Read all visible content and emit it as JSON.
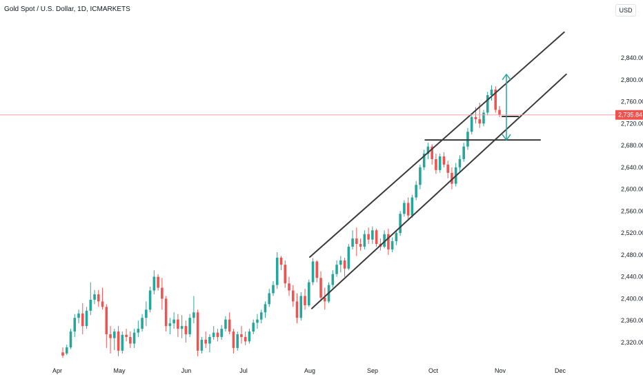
{
  "header": {
    "title": "Gold Spot / U.S. Dollar, 1D, ICMARKETS",
    "currency": "USD"
  },
  "colors": {
    "up": "#26a69a",
    "down": "#ef5350",
    "drawing": "#3a3a3a",
    "arrow": "#26a69a",
    "price_line": "#f3a3a8"
  },
  "chart_data": {
    "type": "candlestick",
    "title": "Gold Spot / U.S. Dollar, 1D, ICMARKETS",
    "currency": "USD",
    "y_ticks": [
      "2,320.00",
      "2,360.00",
      "2,400.00",
      "2,440.00",
      "2,480.00",
      "2,520.00",
      "2,560.00",
      "2,600.00",
      "2,640.00",
      "2,680.00",
      "2,720.00",
      "2,760.00",
      "2,800.00",
      "2,840.00"
    ],
    "x_ticks": [
      "Apr",
      "May",
      "Jun",
      "Jul",
      "Aug",
      "Sep",
      "Oct",
      "Nov",
      "Dec"
    ],
    "ylim": [
      2290,
      2880
    ],
    "last_price": 2735.84,
    "last_price_label": "2,735.84",
    "candles": [
      [
        2302,
        2311,
        2292,
        2296
      ],
      [
        2300,
        2316,
        2297,
        2311
      ],
      [
        2311,
        2345,
        2308,
        2340
      ],
      [
        2340,
        2372,
        2330,
        2365
      ],
      [
        2365,
        2380,
        2355,
        2373
      ],
      [
        2373,
        2392,
        2335,
        2350
      ],
      [
        2350,
        2385,
        2345,
        2378
      ],
      [
        2378,
        2430,
        2370,
        2398
      ],
      [
        2398,
        2416,
        2390,
        2408
      ],
      [
        2408,
        2416,
        2385,
        2395
      ],
      [
        2395,
        2420,
        2380,
        2385
      ],
      [
        2385,
        2390,
        2310,
        2335
      ],
      [
        2335,
        2350,
        2300,
        2328
      ],
      [
        2328,
        2345,
        2306,
        2340
      ],
      [
        2340,
        2350,
        2295,
        2305
      ],
      [
        2305,
        2340,
        2300,
        2334
      ],
      [
        2334,
        2345,
        2322,
        2330
      ],
      [
        2330,
        2340,
        2310,
        2318
      ],
      [
        2318,
        2345,
        2310,
        2338
      ],
      [
        2338,
        2360,
        2330,
        2345
      ],
      [
        2345,
        2372,
        2340,
        2365
      ],
      [
        2365,
        2395,
        2350,
        2380
      ],
      [
        2380,
        2422,
        2375,
        2415
      ],
      [
        2415,
        2452,
        2408,
        2440
      ],
      [
        2440,
        2445,
        2415,
        2420
      ],
      [
        2420,
        2438,
        2380,
        2400
      ],
      [
        2400,
        2405,
        2340,
        2350
      ],
      [
        2350,
        2365,
        2335,
        2355
      ],
      [
        2355,
        2375,
        2345,
        2362
      ],
      [
        2362,
        2372,
        2330,
        2345
      ],
      [
        2345,
        2370,
        2328,
        2350
      ],
      [
        2350,
        2360,
        2320,
        2335
      ],
      [
        2335,
        2372,
        2330,
        2365
      ],
      [
        2365,
        2405,
        2355,
        2375
      ],
      [
        2375,
        2380,
        2295,
        2305
      ],
      [
        2305,
        2330,
        2300,
        2325
      ],
      [
        2325,
        2340,
        2310,
        2318
      ],
      [
        2318,
        2335,
        2302,
        2330
      ],
      [
        2330,
        2350,
        2325,
        2338
      ],
      [
        2338,
        2345,
        2322,
        2330
      ],
      [
        2330,
        2352,
        2325,
        2345
      ],
      [
        2345,
        2368,
        2340,
        2362
      ],
      [
        2362,
        2375,
        2335,
        2340
      ],
      [
        2340,
        2345,
        2300,
        2310
      ],
      [
        2310,
        2340,
        2305,
        2335
      ],
      [
        2335,
        2350,
        2318,
        2330
      ],
      [
        2330,
        2340,
        2315,
        2322
      ],
      [
        2322,
        2345,
        2318,
        2340
      ],
      [
        2340,
        2362,
        2335,
        2356
      ],
      [
        2356,
        2372,
        2345,
        2362
      ],
      [
        2362,
        2380,
        2355,
        2375
      ],
      [
        2375,
        2395,
        2365,
        2390
      ],
      [
        2390,
        2418,
        2385,
        2410
      ],
      [
        2410,
        2432,
        2405,
        2425
      ],
      [
        2425,
        2485,
        2418,
        2475
      ],
      [
        2475,
        2478,
        2452,
        2462
      ],
      [
        2462,
        2470,
        2420,
        2428
      ],
      [
        2428,
        2440,
        2405,
        2415
      ],
      [
        2415,
        2425,
        2385,
        2395
      ],
      [
        2395,
        2410,
        2355,
        2365
      ],
      [
        2365,
        2412,
        2360,
        2405
      ],
      [
        2405,
        2418,
        2380,
        2388
      ],
      [
        2388,
        2435,
        2385,
        2430
      ],
      [
        2430,
        2474,
        2425,
        2468
      ],
      [
        2468,
        2470,
        2430,
        2438
      ],
      [
        2438,
        2450,
        2395,
        2402
      ],
      [
        2402,
        2420,
        2380,
        2395
      ],
      [
        2395,
        2430,
        2392,
        2425
      ],
      [
        2425,
        2452,
        2420,
        2445
      ],
      [
        2445,
        2470,
        2440,
        2462
      ],
      [
        2462,
        2478,
        2448,
        2470
      ],
      [
        2470,
        2475,
        2440,
        2455
      ],
      [
        2455,
        2500,
        2452,
        2495
      ],
      [
        2495,
        2525,
        2490,
        2510
      ],
      [
        2510,
        2530,
        2478,
        2500
      ],
      [
        2500,
        2510,
        2488,
        2495
      ],
      [
        2495,
        2525,
        2490,
        2518
      ],
      [
        2518,
        2530,
        2500,
        2508
      ],
      [
        2508,
        2532,
        2500,
        2525
      ],
      [
        2525,
        2528,
        2495,
        2500
      ],
      [
        2500,
        2510,
        2488,
        2495
      ],
      [
        2495,
        2525,
        2492,
        2518
      ],
      [
        2518,
        2528,
        2480,
        2490
      ],
      [
        2490,
        2512,
        2485,
        2505
      ],
      [
        2505,
        2525,
        2498,
        2520
      ],
      [
        2520,
        2560,
        2515,
        2555
      ],
      [
        2555,
        2580,
        2550,
        2575
      ],
      [
        2575,
        2585,
        2545,
        2552
      ],
      [
        2552,
        2590,
        2548,
        2585
      ],
      [
        2585,
        2615,
        2580,
        2608
      ],
      [
        2608,
        2645,
        2600,
        2640
      ],
      [
        2640,
        2672,
        2635,
        2665
      ],
      [
        2665,
        2685,
        2655,
        2678
      ],
      [
        2678,
        2682,
        2645,
        2655
      ],
      [
        2655,
        2665,
        2628,
        2635
      ],
      [
        2635,
        2665,
        2630,
        2660
      ],
      [
        2660,
        2668,
        2640,
        2645
      ],
      [
        2645,
        2652,
        2620,
        2630
      ],
      [
        2630,
        2640,
        2600,
        2610
      ],
      [
        2610,
        2648,
        2605,
        2640
      ],
      [
        2640,
        2662,
        2632,
        2655
      ],
      [
        2655,
        2685,
        2650,
        2678
      ],
      [
        2678,
        2712,
        2672,
        2705
      ],
      [
        2705,
        2738,
        2700,
        2732
      ],
      [
        2732,
        2750,
        2720,
        2728
      ],
      [
        2728,
        2758,
        2712,
        2720
      ],
      [
        2720,
        2745,
        2715,
        2740
      ],
      [
        2740,
        2778,
        2735,
        2772
      ],
      [
        2772,
        2790,
        2762,
        2782
      ],
      [
        2782,
        2788,
        2740,
        2745
      ],
      [
        2745,
        2752,
        2732,
        2736
      ]
    ],
    "channel_upper": {
      "from": [
        "2024-08-01",
        2476
      ],
      "to": [
        "2024-12-03",
        2887
      ]
    },
    "channel_lower": {
      "from": [
        "2024-08-02",
        2382
      ],
      "to": [
        "2024-12-04",
        2810
      ]
    },
    "resistance_level": {
      "price": 2690,
      "from": "2024-09-27",
      "to": "2024-11-21"
    },
    "short_level": {
      "price": 2733,
      "from": "2024-11-02",
      "to": "2024-11-10"
    },
    "arrows": [
      {
        "from": 2734,
        "to": 2810
      },
      {
        "from": 2734,
        "to": 2690
      }
    ]
  }
}
